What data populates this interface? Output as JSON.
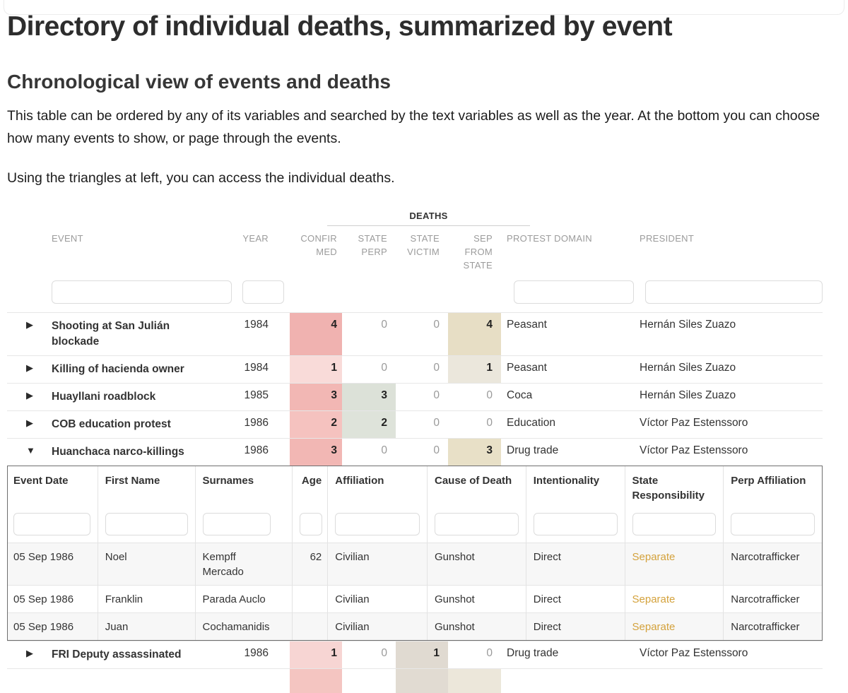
{
  "page": {
    "title": "Directory of individual deaths, summarized by event",
    "subtitle": "Chronological view of events and deaths",
    "paragraph1": "This table can be ordered by any of its variables and searched by the text variables as well as the year. At the bottom you can choose how many events to show, or page through the events.",
    "paragraph2": "Using the triangles at left, you can access the individual deaths."
  },
  "main_table": {
    "group_header": "DEATHS",
    "columns": {
      "event": "EVENT",
      "year": "YEAR",
      "confirmed": "CONFIR\nMED",
      "state_perp": "STATE\nPERP",
      "state_victim": "STATE\nVICTIM",
      "sep_from_state": "SEP\nFROM\nSTATE",
      "protest_domain": "PROTEST DOMAIN",
      "president": "PRESIDENT"
    },
    "rows": [
      {
        "expanded": false,
        "event": "Shooting at San Julián blockade",
        "year": "1984",
        "confirmed": {
          "v": "4",
          "bg": "#f0b2b0"
        },
        "state_perp": {
          "v": "0"
        },
        "state_victim": {
          "v": "0"
        },
        "sep_from_state": {
          "v": "4",
          "bg": "#e7dec5"
        },
        "protest_domain": "Peasant",
        "president": "Hernán Siles Zuazo"
      },
      {
        "expanded": false,
        "event": "Killing of hacienda owner",
        "year": "1984",
        "confirmed": {
          "v": "1",
          "bg": "#f9dbd9"
        },
        "state_perp": {
          "v": "0"
        },
        "state_victim": {
          "v": "0"
        },
        "sep_from_state": {
          "v": "1",
          "bg": "#ebe7dc"
        },
        "protest_domain": "Peasant",
        "president": "Hernán Siles Zuazo"
      },
      {
        "expanded": false,
        "event": "Huayllani roadblock",
        "year": "1985",
        "confirmed": {
          "v": "3",
          "bg": "#f2b7b4"
        },
        "state_perp": {
          "v": "3",
          "bg": "#dce1d8"
        },
        "state_victim": {
          "v": "0"
        },
        "sep_from_state": {
          "v": "0"
        },
        "protest_domain": "Coca",
        "president": "Hernán Siles Zuazo"
      },
      {
        "expanded": false,
        "event": "COB education protest",
        "year": "1986",
        "confirmed": {
          "v": "2",
          "bg": "#f5c2bf"
        },
        "state_perp": {
          "v": "2",
          "bg": "#dee3da"
        },
        "state_victim": {
          "v": "0"
        },
        "sep_from_state": {
          "v": "0"
        },
        "protest_domain": "Education",
        "president": "Víctor Paz Estenssoro"
      },
      {
        "expanded": true,
        "event": "Huanchaca narco-killings",
        "year": "1986",
        "confirmed": {
          "v": "3",
          "bg": "#f2b7b4"
        },
        "state_perp": {
          "v": "0"
        },
        "state_victim": {
          "v": "0"
        },
        "sep_from_state": {
          "v": "3",
          "bg": "#e8e0c7"
        },
        "protest_domain": "Drug trade",
        "president": "Víctor Paz Estenssoro"
      },
      {
        "expanded": false,
        "event": "FRI Deputy assassinated",
        "year": "1986",
        "confirmed": {
          "v": "1",
          "bg": "#f7d5d3"
        },
        "state_perp": {
          "v": "0"
        },
        "state_victim": {
          "v": "1",
          "bg": "#e0dad1"
        },
        "sep_from_state": {
          "v": "0"
        },
        "protest_domain": "Drug trade",
        "president": "Víctor Paz Estenssoro"
      },
      {
        "partial": true,
        "confirmed": {
          "v": "",
          "bg": "#f4c5c1"
        },
        "state_perp": {
          "v": ""
        },
        "state_victim": {
          "v": "",
          "bg": "#e1dbd2"
        },
        "sep_from_state": {
          "v": "",
          "bg": "#ece7da"
        }
      }
    ]
  },
  "detail_table": {
    "columns": {
      "event_date": "Event Date",
      "first_name": "First Name",
      "surnames": "Surnames",
      "age": "Age",
      "affiliation": "Affiliation",
      "cause_of_death": "Cause of Death",
      "intentionality": "Intentionality",
      "state_responsibility": "State\nResponsibility",
      "perp_affiliation": "Perp Affiliation"
    },
    "separate_color": "#d4a23c",
    "rows": [
      {
        "event_date": "05 Sep 1986",
        "first_name": "Noel",
        "surnames": "Kempff Mercado",
        "age": "62",
        "affiliation": "Civilian",
        "cause_of_death": "Gunshot",
        "intentionality": "Direct",
        "state_responsibility": "Separate",
        "perp_affiliation": "Narcotrafficker"
      },
      {
        "event_date": "05 Sep 1986",
        "first_name": "Franklin",
        "surnames": "Parada Auclo",
        "age": "",
        "affiliation": "Civilian",
        "cause_of_death": "Gunshot",
        "intentionality": "Direct",
        "state_responsibility": "Separate",
        "perp_affiliation": "Narcotrafficker"
      },
      {
        "event_date": "05 Sep 1986",
        "first_name": "Juan",
        "surnames": "Cochamanidis",
        "age": "",
        "affiliation": "Civilian",
        "cause_of_death": "Gunshot",
        "intentionality": "Direct",
        "state_responsibility": "Separate",
        "perp_affiliation": "Narcotrafficker"
      }
    ]
  }
}
